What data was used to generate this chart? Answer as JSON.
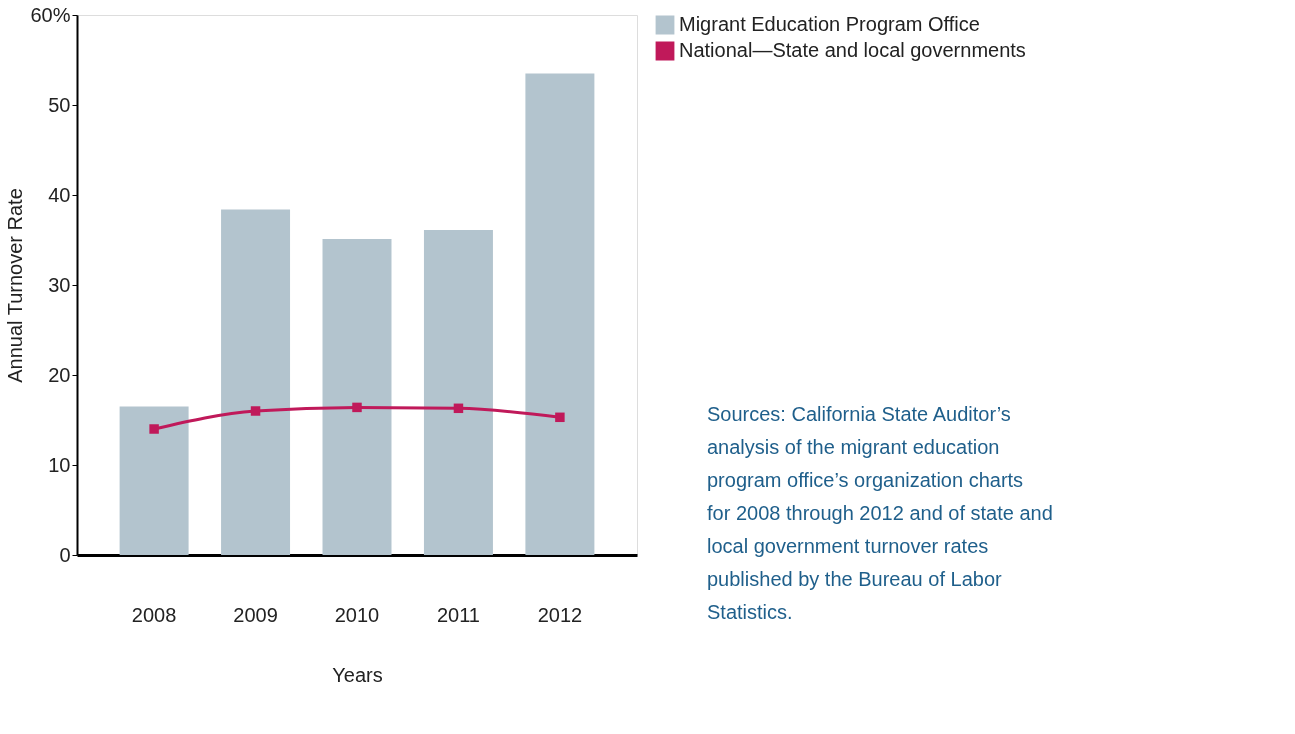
{
  "chart_data": {
    "type": "bar",
    "xlabel": "Years",
    "ylabel": "Annual Turnover Rate",
    "categories": [
      "2008",
      "2009",
      "2010",
      "2011",
      "2012"
    ],
    "series": [
      {
        "name": "Migrant Education Program Office",
        "color": "#b3c4ce",
        "values": [
          16.5,
          38.4,
          35.1,
          36.1,
          53.5
        ]
      },
      {
        "name": "National—State and local governments",
        "type": "line",
        "color": "#c0195a",
        "marker": "square",
        "values": [
          14.0,
          16.0,
          16.4,
          16.3,
          15.3
        ]
      }
    ],
    "ylim": [
      0,
      60
    ],
    "yticks": [
      0,
      10,
      20,
      30,
      40,
      50,
      {
        "value": 60,
        "label": "60%"
      }
    ],
    "grid": false,
    "legend": "top right",
    "annotations": [
      "Sources:  California State Auditor’s analysis of the migrant education program office’s organization charts for 2008 through 2012 and of state and local government turnover rates published by the Bureau of Labor Statistics."
    ]
  }
}
